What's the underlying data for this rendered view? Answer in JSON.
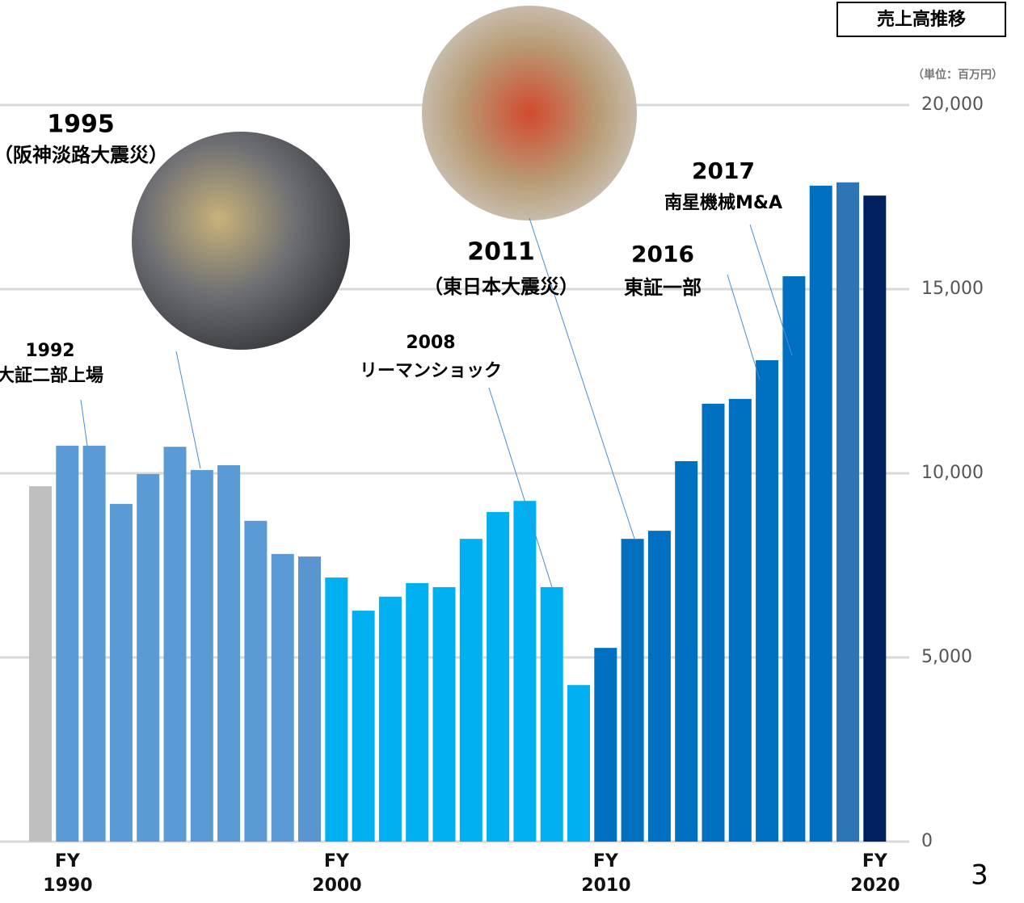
{
  "chart_data": {
    "type": "bar",
    "title": "売上高推移",
    "unit_label": "（単位：百万円）",
    "page_number": "3",
    "categories": [
      null,
      "FY 1990",
      null,
      null,
      null,
      null,
      null,
      null,
      null,
      null,
      null,
      "FY 2000",
      null,
      null,
      null,
      null,
      null,
      null,
      null,
      null,
      null,
      "FY 2010",
      null,
      null,
      null,
      null,
      null,
      null,
      null,
      null,
      null,
      "FY 2020"
    ],
    "values": [
      9650,
      10750,
      10750,
      9170,
      9980,
      10720,
      10090,
      10220,
      8710,
      7810,
      7740,
      7170,
      6270,
      6650,
      7020,
      6910,
      8220,
      8950,
      9250,
      6910,
      4250,
      5260,
      8220,
      8440,
      10330,
      11890,
      12020,
      13070,
      15350,
      17810,
      17900,
      17540
    ],
    "colors": [
      "#bfbfbf",
      "#5b9bd5",
      "#5b9bd5",
      "#5b9bd5",
      "#5b9bd5",
      "#5b9bd5",
      "#5b9bd5",
      "#5b9bd5",
      "#5b9bd5",
      "#5b9bd5",
      "#5a95cf",
      "#00b0f0",
      "#00b0f0",
      "#00b0f0",
      "#00b0f0",
      "#00b0f0",
      "#00b0f0",
      "#00b0f0",
      "#00b0f0",
      "#00b0f0",
      "#00b0f0",
      "#0070c0",
      "#0070c0",
      "#0070c0",
      "#0070c0",
      "#0070c0",
      "#0070c0",
      "#0070c0",
      "#0070c0",
      "#0070c0",
      "#2e75b6",
      "#002060"
    ],
    "ylim": [
      0,
      20000
    ],
    "yticks": [
      0,
      {
        "value": 5000,
        "label": "5,000"
      },
      {
        "value": 10000,
        "label": "10,000"
      },
      {
        "value": 15000,
        "label": "15,000"
      },
      {
        "value": 20000,
        "label": "20,000"
      }
    ],
    "grid": true,
    "annotations": [
      {
        "year": "1992",
        "label": "大証二部上場"
      },
      {
        "year": "1995",
        "label": "（阪神淡路大震災）"
      },
      {
        "year": "2008",
        "label": "リーマンショック"
      },
      {
        "year": "2011",
        "label": "（東日本大震災）"
      },
      {
        "year": "2016",
        "label": "東証一部"
      },
      {
        "year": "2017",
        "label": "南星機械M&A"
      }
    ]
  }
}
